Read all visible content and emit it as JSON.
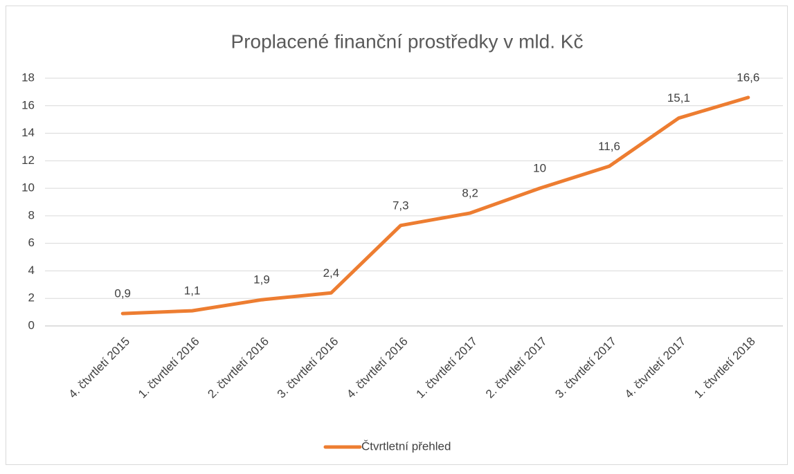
{
  "chart_data": {
    "type": "line",
    "title": "Proplacené finanční prostředky v mld. Kč",
    "categories": [
      "4. čtvrtletí 2015",
      "1. čtvrtletí 2016",
      "2. čtvrtletí 2016",
      "3. čtvrtletí 2016",
      "4. čtvrtletí 2016",
      "1. čtvrtletí 2017",
      "2. čtvrtletí 2017",
      "3. čtvrtletí 2017",
      "4. čtvrtletí 2017",
      "1. čtvrtletí 2018"
    ],
    "series": [
      {
        "name": "Čtvrtletní přehled",
        "color": "#ed7d31",
        "values": [
          0.9,
          1.1,
          1.9,
          2.4,
          7.3,
          8.2,
          10,
          11.6,
          15.1,
          16.6
        ],
        "value_labels": [
          "0,9",
          "1,1",
          "1,9",
          "2,4",
          "7,3",
          "8,2",
          "10",
          "11,6",
          "15,1",
          "16,6"
        ]
      }
    ],
    "ylim": [
      0,
      18
    ],
    "yticks": [
      0,
      2,
      4,
      6,
      8,
      10,
      12,
      14,
      16,
      18
    ],
    "grid": true,
    "legend": "bottom"
  }
}
